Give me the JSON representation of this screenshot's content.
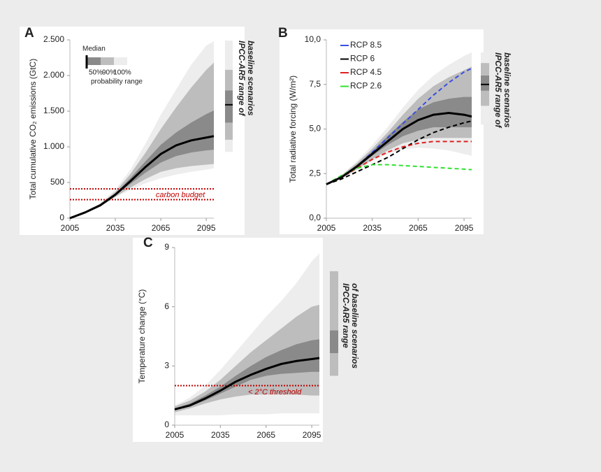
{
  "chart_data": [
    {
      "type": "fan",
      "panel": "A",
      "ylabel": "Total cumulative CO₂ emissions (GtC)",
      "x": [
        2005,
        2015,
        2025,
        2035,
        2045,
        2055,
        2065,
        2075,
        2085,
        2095,
        2100
      ],
      "xlim": [
        2005,
        2100
      ],
      "xticks": [
        2005,
        2035,
        2065,
        2095
      ],
      "ylim": [
        0,
        2500
      ],
      "yticks": [
        0,
        500,
        {
          "value": 1000,
          "label": "1.000"
        },
        {
          "value": 1500,
          "label": "1.500"
        },
        {
          "value": 2000,
          "label": "2.000"
        },
        {
          "value": 2500,
          "label": "2.500"
        }
      ],
      "bands": [
        {
          "name": "50%",
          "color": "#8a8a8a",
          "lower": [
            0,
            80,
            175,
            320,
            480,
            640,
            780,
            870,
            920,
            950,
            960
          ],
          "upper": [
            0,
            85,
            190,
            345,
            565,
            800,
            1030,
            1200,
            1340,
            1460,
            1510
          ]
        },
        {
          "name": "90%",
          "color": "#bdbdbd",
          "lower": [
            0,
            75,
            165,
            300,
            430,
            550,
            650,
            700,
            730,
            750,
            760
          ],
          "upper": [
            0,
            90,
            200,
            370,
            620,
            920,
            1250,
            1550,
            1830,
            2080,
            2180
          ]
        },
        {
          "name": "100%",
          "color": "#ededed",
          "lower": [
            0,
            70,
            160,
            290,
            400,
            490,
            560,
            610,
            650,
            680,
            700
          ],
          "upper": [
            0,
            95,
            210,
            400,
            680,
            1050,
            1450,
            1800,
            2150,
            2420,
            2480
          ]
        }
      ],
      "median": {
        "name": "Median",
        "color": "#000000",
        "values": [
          0,
          80,
          180,
          330,
          520,
          720,
          900,
          1020,
          1090,
          1130,
          1150
        ]
      },
      "legend": {
        "caption": "probability range"
      },
      "threshold_lines": {
        "values": [
          410,
          260
        ],
        "label": "carbon budget",
        "color": "#c00000"
      },
      "side_bar": {
        "label_lines": [
          "IPCC-AR5 range of",
          "baseline scenarios"
        ],
        "ranges": [
          {
            "color": "#ededed",
            "lower": 930,
            "upper": 2490
          },
          {
            "color": "#bdbdbd",
            "lower": 1100,
            "upper": 2080
          },
          {
            "color": "#8a8a8a",
            "lower": 1340,
            "upper": 1790
          }
        ],
        "median": 1590
      }
    },
    {
      "type": "fan",
      "panel": "B",
      "ylabel": "Total radiative forcing (W/m²)",
      "x": [
        2005,
        2015,
        2025,
        2035,
        2045,
        2055,
        2065,
        2075,
        2085,
        2095,
        2100
      ],
      "xlim": [
        2005,
        2100
      ],
      "xticks": [
        2005,
        2035,
        2065,
        2095
      ],
      "ylim": [
        0,
        10
      ],
      "yticks": [
        {
          "value": 0,
          "label": "0,0"
        },
        {
          "value": 2.5,
          "label": "2,5"
        },
        {
          "value": 5,
          "label": "5,0"
        },
        {
          "value": 7.5,
          "label": "7,5"
        },
        {
          "value": 10,
          "label": "10,0"
        }
      ],
      "bands": [
        {
          "color": "#8a8a8a",
          "lower": [
            1.9,
            2.3,
            2.85,
            3.5,
            4.1,
            4.6,
            4.9,
            5.1,
            5.1,
            5.1,
            5.1
          ],
          "upper": [
            1.9,
            2.35,
            3.0,
            3.75,
            4.6,
            5.4,
            6.1,
            6.5,
            6.7,
            6.8,
            6.8
          ]
        },
        {
          "color": "#bdbdbd",
          "lower": [
            1.9,
            2.25,
            2.75,
            3.3,
            3.8,
            4.2,
            4.4,
            4.5,
            4.5,
            4.5,
            4.5
          ],
          "upper": [
            1.9,
            2.4,
            3.1,
            3.9,
            4.8,
            5.8,
            6.7,
            7.4,
            7.9,
            8.3,
            8.5
          ]
        },
        {
          "color": "#ededed",
          "lower": [
            1.9,
            2.2,
            2.7,
            3.2,
            3.6,
            3.85,
            3.95,
            3.9,
            3.8,
            3.6,
            3.5
          ],
          "upper": [
            1.9,
            2.45,
            3.2,
            4.1,
            5.1,
            6.2,
            7.2,
            8.0,
            8.6,
            9.1,
            9.3
          ]
        }
      ],
      "median": {
        "color": "#000000",
        "values": [
          1.9,
          2.3,
          2.9,
          3.6,
          4.3,
          5.0,
          5.5,
          5.8,
          5.9,
          5.8,
          5.7
        ]
      },
      "series": [
        {
          "name": "RCP 8.5",
          "color": "#3a4fe0",
          "values": [
            1.9,
            2.3,
            2.9,
            3.7,
            4.5,
            5.3,
            6.1,
            6.9,
            7.6,
            8.2,
            8.4
          ]
        },
        {
          "name": "RCP 6",
          "color": "#000000",
          "values": [
            1.9,
            2.2,
            2.6,
            3.0,
            3.4,
            3.9,
            4.4,
            4.8,
            5.1,
            5.35,
            5.45
          ]
        },
        {
          "name": "RCP 4.5",
          "color": "#e02020",
          "values": [
            1.9,
            2.3,
            2.8,
            3.3,
            3.7,
            4.0,
            4.2,
            4.3,
            4.3,
            4.3,
            4.3
          ]
        },
        {
          "name": "RCP 2.6",
          "color": "#30e030",
          "values": [
            1.9,
            2.4,
            2.8,
            3.0,
            3.0,
            2.95,
            2.9,
            2.85,
            2.8,
            2.75,
            2.72
          ]
        }
      ],
      "side_bar": {
        "label_lines": [
          "IPCC-AR5 range of",
          "baseline scenarios"
        ],
        "ranges": [
          {
            "color": "#ededed",
            "lower": 5.25,
            "upper": 9.3
          },
          {
            "color": "#bdbdbd",
            "lower": 6.3,
            "upper": 8.7
          },
          {
            "color": "#8a8a8a",
            "lower": 7.15,
            "upper": 8.0
          }
        ],
        "median": 7.5
      }
    },
    {
      "type": "fan",
      "panel": "C",
      "ylabel": "Temperature change (°C)",
      "x": [
        2005,
        2015,
        2025,
        2035,
        2045,
        2055,
        2065,
        2075,
        2085,
        2095,
        2100
      ],
      "xlim": [
        2005,
        2100
      ],
      "xticks": [
        2005,
        2035,
        2065,
        2095
      ],
      "ylim": [
        0,
        9
      ],
      "yticks": [
        0,
        3,
        6,
        9
      ],
      "bands": [
        {
          "color": "#8a8a8a",
          "lower": [
            0.75,
            0.95,
            1.25,
            1.6,
            1.95,
            2.3,
            2.5,
            2.6,
            2.65,
            2.7,
            2.7
          ],
          "upper": [
            0.85,
            1.1,
            1.5,
            1.95,
            2.5,
            3.0,
            3.45,
            3.8,
            4.1,
            4.3,
            4.35
          ]
        },
        {
          "color": "#bdbdbd",
          "lower": [
            0.65,
            0.85,
            1.1,
            1.3,
            1.45,
            1.55,
            1.55,
            1.55,
            1.55,
            1.5,
            1.5
          ],
          "upper": [
            0.95,
            1.25,
            1.7,
            2.3,
            3.0,
            3.7,
            4.3,
            4.9,
            5.5,
            6.0,
            6.1
          ]
        },
        {
          "color": "#ededed",
          "lower": [
            0.5,
            0.5,
            0.5,
            0.5,
            0.55,
            0.55,
            0.55,
            0.6,
            0.6,
            0.6,
            0.6
          ],
          "upper": [
            1.0,
            1.4,
            2.0,
            2.8,
            3.7,
            4.6,
            5.5,
            6.3,
            7.2,
            8.3,
            8.7
          ]
        }
      ],
      "median": {
        "color": "#000000",
        "values": [
          0.8,
          1.0,
          1.35,
          1.75,
          2.2,
          2.55,
          2.85,
          3.1,
          3.25,
          3.35,
          3.4
        ]
      },
      "threshold_lines": {
        "values": [
          2
        ],
        "label": "< 2°C threshold",
        "color": "#c00000"
      },
      "side_bar": {
        "label_lines": [
          "IPCC-AR5 range",
          "of baseline scenarios"
        ],
        "ranges": [
          {
            "color": "#bdbdbd",
            "lower": 2.5,
            "upper": 7.8
          },
          {
            "color": "#8a8a8a",
            "lower": 3.65,
            "upper": 4.8
          }
        ]
      }
    }
  ]
}
